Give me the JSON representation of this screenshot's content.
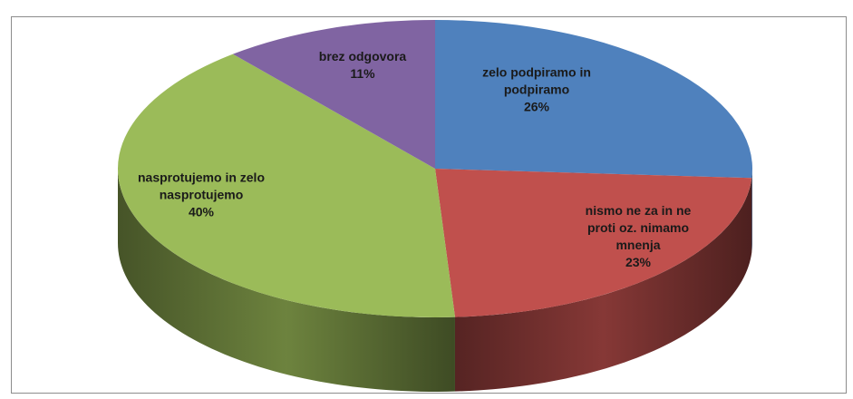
{
  "chart_data": {
    "type": "pie3d",
    "categories": [
      "zelo podpiramo in podpiramo",
      "nismo ne za in ne proti oz. nimamo mnenja",
      "nasprotujemo in zelo nasprotujemo",
      "brez odgovora"
    ],
    "values": [
      26,
      23,
      40,
      11
    ],
    "value_labels": [
      "26%",
      "23%",
      "40%",
      "11%"
    ],
    "colors": [
      "#4f81bd",
      "#c0504d",
      "#9bbb59",
      "#8064a2"
    ]
  }
}
